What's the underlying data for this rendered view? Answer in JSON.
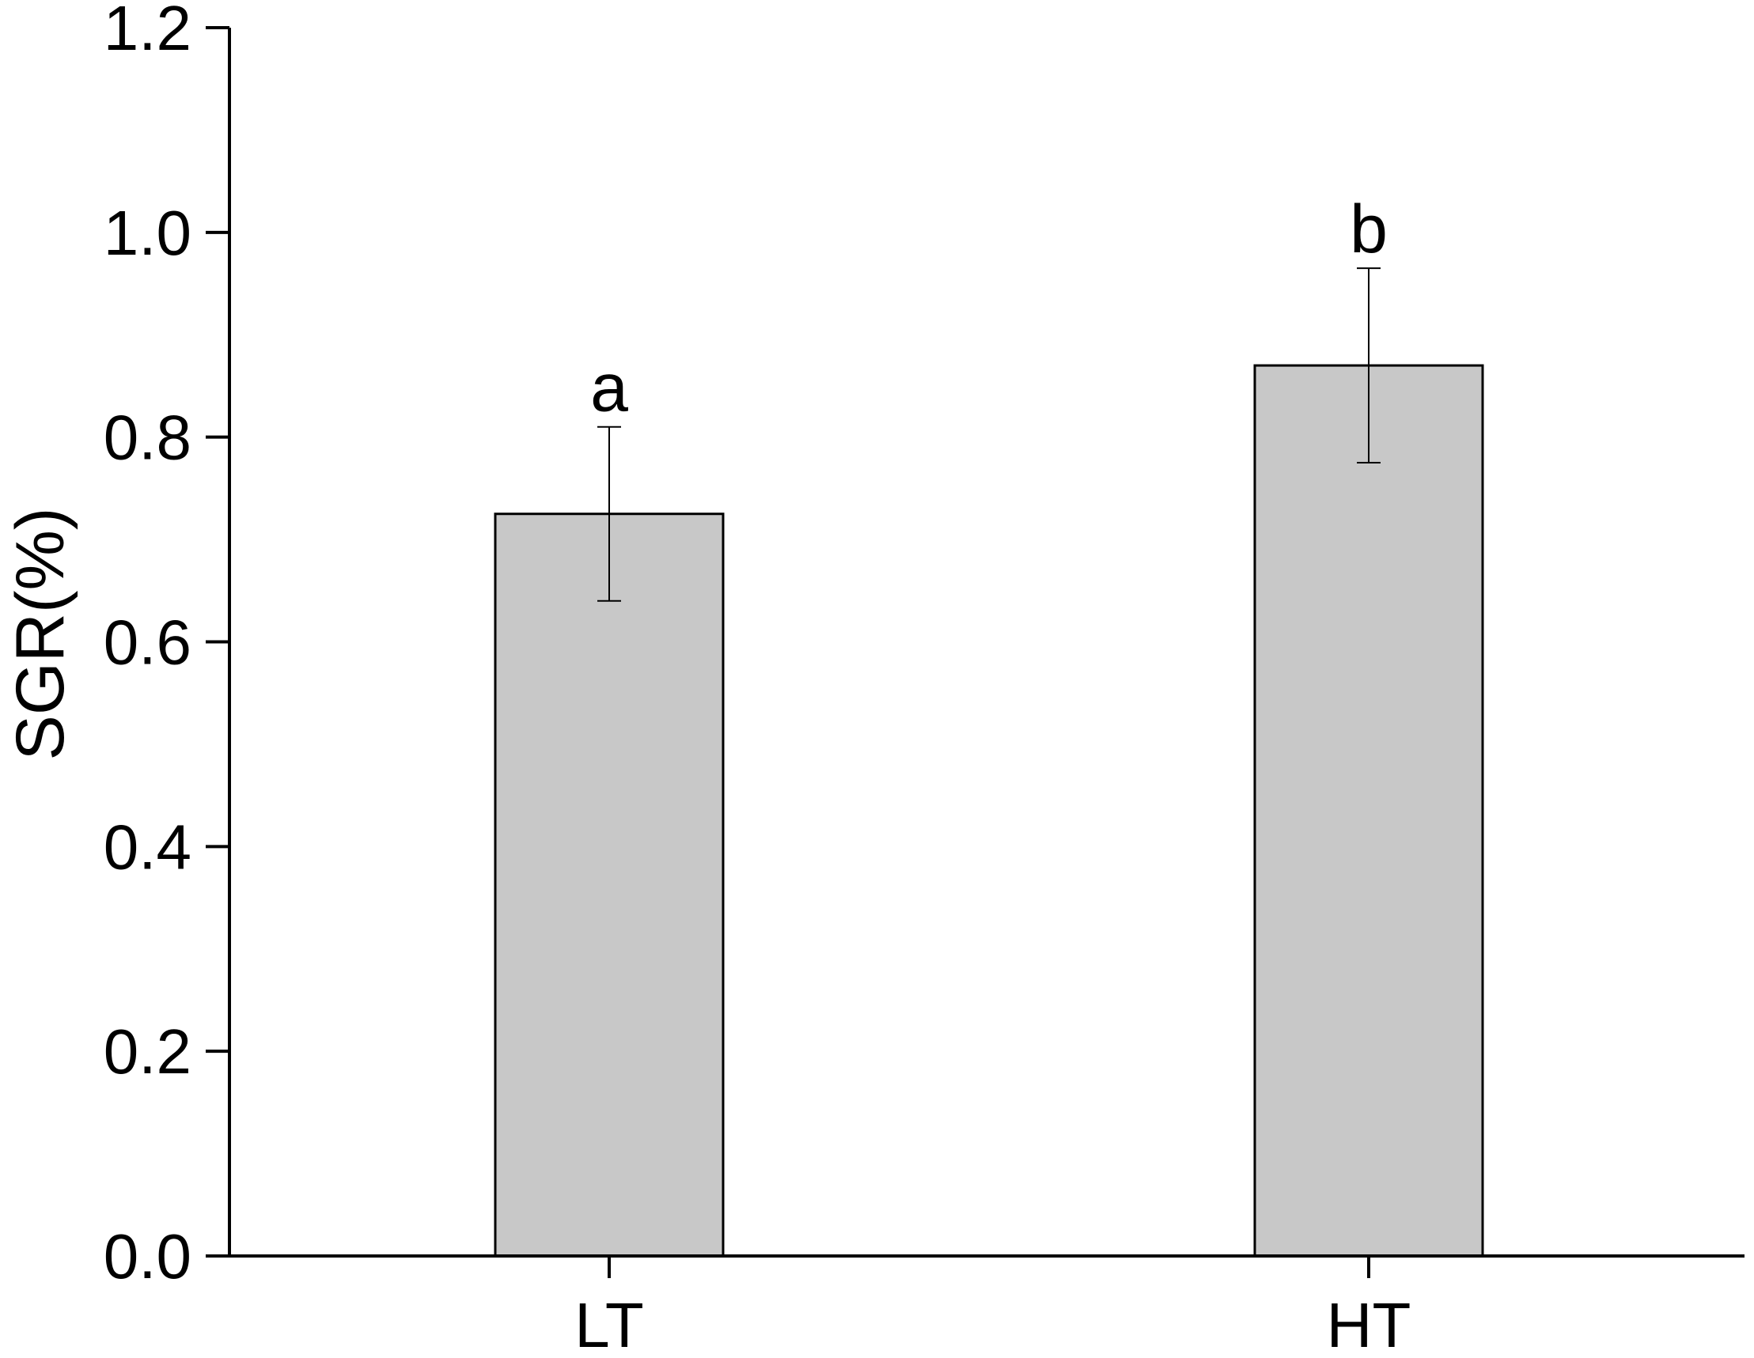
{
  "chart_data": {
    "type": "bar",
    "title": "",
    "xlabel": "",
    "ylabel": "SGR(%)",
    "categories": [
      "LT",
      "HT"
    ],
    "values": [
      0.725,
      0.87
    ],
    "error_high": [
      0.81,
      0.965
    ],
    "error_low": [
      0.64,
      0.775
    ],
    "significance_labels": [
      "a",
      "b"
    ],
    "ylim": [
      0,
      1.2
    ],
    "yticks": [
      "0.0",
      "0.2",
      "0.4",
      "0.6",
      "0.8",
      "1.0",
      "1.2"
    ],
    "grid": false,
    "legend": "none",
    "bar_color": "#c8c8c8",
    "edge_color": "#000000"
  }
}
